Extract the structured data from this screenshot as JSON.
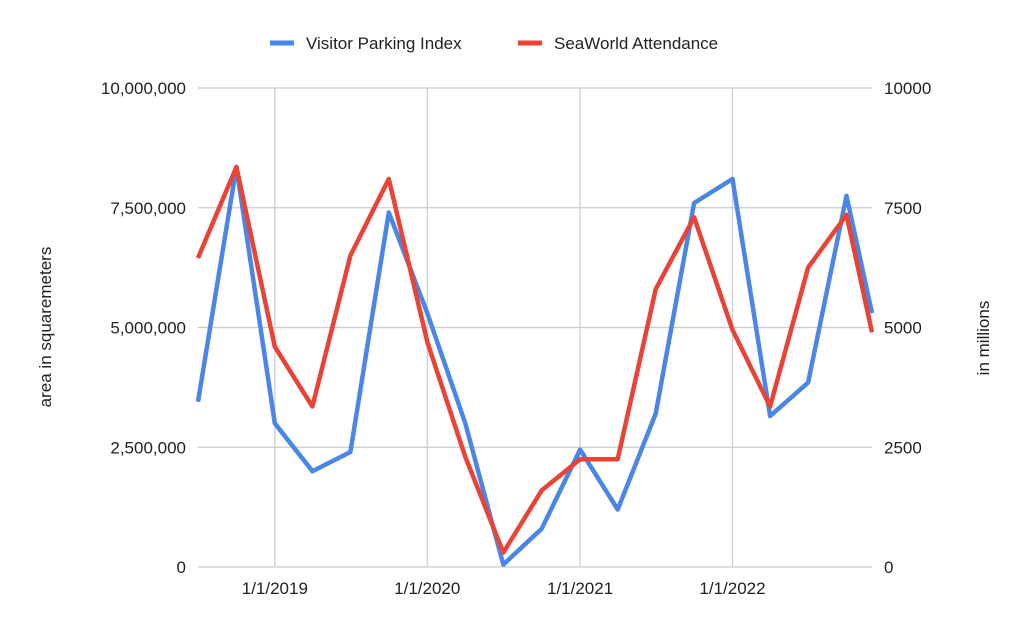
{
  "chart_data": {
    "type": "line",
    "title": "",
    "xlabel": "",
    "ylabel": "area in squaremeters",
    "y2label": "in millions",
    "grid": true,
    "legend_position": "top",
    "x_range": [
      "2018-07-01",
      "2022-12-01"
    ],
    "ylim": [
      0,
      10000000
    ],
    "y2lim": [
      0,
      10000
    ],
    "y_ticks": [
      0,
      2500000,
      5000000,
      7500000,
      10000000
    ],
    "y_tick_labels": [
      "0",
      "2,500,000",
      "5,000,000",
      "7,500,000",
      "10,000,000"
    ],
    "y2_ticks": [
      0,
      2500,
      5000,
      7500,
      10000
    ],
    "y2_tick_labels": [
      "0",
      "2500",
      "5000",
      "7500",
      "10000"
    ],
    "x_tick_labels": [
      "1/1/2019",
      "1/1/2020",
      "1/1/2021",
      "1/1/2022"
    ],
    "x_tick_dates": [
      "2019-01-01",
      "2020-01-01",
      "2021-01-01",
      "2022-01-01"
    ],
    "x": [
      "2018-07-01",
      "2018-10-01",
      "2019-01-01",
      "2019-04-01",
      "2019-07-01",
      "2019-10-01",
      "2020-01-01",
      "2020-04-01",
      "2020-07-01",
      "2020-10-01",
      "2021-01-01",
      "2021-04-01",
      "2021-07-01",
      "2021-10-01",
      "2022-01-01",
      "2022-04-01",
      "2022-07-01",
      "2022-10-01",
      "2022-12-01"
    ],
    "series": [
      {
        "name": "Visitor Parking Index",
        "axis": "left",
        "color": "#4a86e8",
        "values": [
          3450000,
          8350000,
          3000000,
          2000000,
          2400000,
          7400000,
          5300000,
          3000000,
          50000,
          800000,
          2450000,
          1200000,
          3200000,
          7600000,
          8100000,
          3150000,
          3850000,
          7750000,
          5300000
        ]
      },
      {
        "name": "SeaWorld Attendance",
        "axis": "right",
        "color": "#ea4335",
        "values": [
          6450,
          8350,
          4600,
          3350,
          6500,
          8100,
          4700,
          2300,
          300,
          1600,
          2250,
          2250,
          5800,
          7300,
          4950,
          3350,
          6250,
          7350,
          4900
        ]
      }
    ]
  }
}
